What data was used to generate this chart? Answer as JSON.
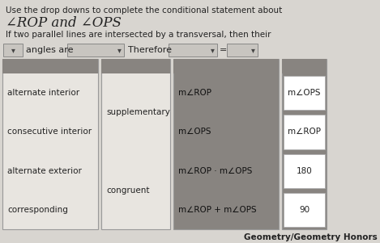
{
  "bg_color": "#d8d5d0",
  "title_line1": "Use the drop downs to complete the conditional statement about",
  "title_line2": "∠ROP and ∠OPS",
  "subtitle": "If two parallel lines are intersected by a transversal, then their",
  "dropdown_label1": "angles are",
  "dropdown_label2": "Therefore",
  "col1_items": [
    "alternate interior",
    "consecutive interior",
    "alternate exterior",
    "corresponding"
  ],
  "col2_items": [
    "supplementary",
    "congruent"
  ],
  "col3_items": [
    "m∠ROP",
    "m∠OPS",
    "m∠ROP · m∠OPS",
    "m∠ROP + m∠OPS"
  ],
  "col4_items": [
    "m∠OPS",
    "m∠ROP",
    "180",
    "90"
  ],
  "footer": "Geometry/Geometry Honors",
  "panel_header_bg": "#888480",
  "panel_white_bg": "#e8e5e0",
  "panel_dark_bg": "#888480",
  "border_color": "#999999",
  "dd_bg": "#c8c5c0",
  "text_color": "#222222"
}
